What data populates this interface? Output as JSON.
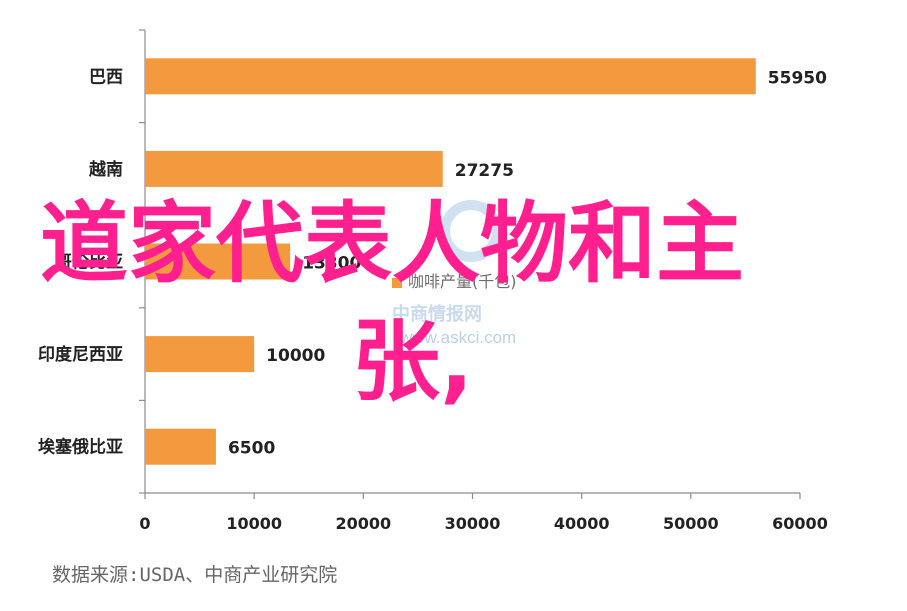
{
  "chart_data": {
    "type": "bar",
    "orientation": "horizontal",
    "categories": [
      "巴西",
      "越南",
      "哥伦比亚",
      "印度尼西亚",
      "埃塞俄比亚"
    ],
    "values": [
      55950,
      27275,
      13300,
      10000,
      6500
    ],
    "value_labels": [
      "55950",
      "27275",
      "13300",
      "10000",
      "6500"
    ],
    "series": [
      {
        "name": "咖啡产量(千包)",
        "values": [
          55950,
          27275,
          13300,
          10000,
          6500
        ]
      }
    ],
    "xlim": [
      0,
      60000
    ],
    "x_ticks": [
      "0",
      "10000",
      "20000",
      "30000",
      "40000",
      "50000",
      "60000"
    ],
    "bar_color": "#f39a3e",
    "grid": false,
    "legend": "center"
  },
  "overlay": {
    "line1": "道家代表人物和主",
    "line2": "张,",
    "color": "#ff1f8f"
  },
  "watermark": {
    "cn": "中商情报网",
    "url": "www.askci.com"
  },
  "source": "数据来源:USDA、中商产业研究院"
}
